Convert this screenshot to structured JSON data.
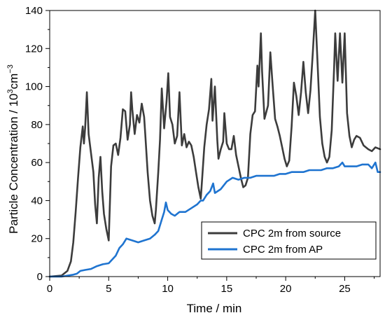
{
  "chart_data": {
    "type": "line",
    "title": "",
    "xlabel": "Time / min",
    "ylabel": "Particle Concentration / 10³cm⁻³",
    "ylabel_parts": {
      "base": "Particle Concentration / 10",
      "sup1": "3",
      "mid": "cm",
      "sup2": "−3"
    },
    "xlim": [
      0,
      28
    ],
    "ylim": [
      0,
      140
    ],
    "xticks": [
      0,
      5,
      10,
      15,
      20,
      25
    ],
    "yticks": [
      0,
      20,
      40,
      60,
      80,
      100,
      120,
      140
    ],
    "grid": false,
    "legend_position": "bottom-right",
    "series": [
      {
        "name": "CPC 2m from source",
        "color": "#3c3c3c",
        "points": [
          [
            0,
            0
          ],
          [
            1,
            0.5
          ],
          [
            1.5,
            3
          ],
          [
            1.8,
            8
          ],
          [
            2,
            18
          ],
          [
            2.2,
            34
          ],
          [
            2.4,
            52
          ],
          [
            2.6,
            68
          ],
          [
            2.8,
            79
          ],
          [
            2.9,
            70
          ],
          [
            3.0,
            78
          ],
          [
            3.15,
            97
          ],
          [
            3.3,
            75
          ],
          [
            3.5,
            65
          ],
          [
            3.7,
            55
          ],
          [
            3.85,
            38
          ],
          [
            4.0,
            28
          ],
          [
            4.15,
            52
          ],
          [
            4.3,
            63
          ],
          [
            4.45,
            45
          ],
          [
            4.6,
            33
          ],
          [
            4.8,
            25
          ],
          [
            5.0,
            19
          ],
          [
            5.2,
            58
          ],
          [
            5.4,
            69
          ],
          [
            5.6,
            70
          ],
          [
            5.8,
            64
          ],
          [
            6.0,
            73
          ],
          [
            6.2,
            88
          ],
          [
            6.4,
            87
          ],
          [
            6.6,
            72
          ],
          [
            6.8,
            80
          ],
          [
            6.9,
            97
          ],
          [
            7.0,
            88
          ],
          [
            7.2,
            75
          ],
          [
            7.4,
            85
          ],
          [
            7.6,
            81
          ],
          [
            7.8,
            91
          ],
          [
            8.0,
            84
          ],
          [
            8.1,
            75
          ],
          [
            8.3,
            55
          ],
          [
            8.5,
            40
          ],
          [
            8.7,
            32
          ],
          [
            8.9,
            28
          ],
          [
            9.0,
            35
          ],
          [
            9.2,
            55
          ],
          [
            9.35,
            72
          ],
          [
            9.5,
            99
          ],
          [
            9.7,
            78
          ],
          [
            9.9,
            92
          ],
          [
            10.05,
            107
          ],
          [
            10.2,
            84
          ],
          [
            10.4,
            80
          ],
          [
            10.6,
            70
          ],
          [
            10.8,
            74
          ],
          [
            11.0,
            97
          ],
          [
            11.2,
            69
          ],
          [
            11.4,
            75
          ],
          [
            11.6,
            68
          ],
          [
            11.8,
            71
          ],
          [
            12.0,
            69
          ],
          [
            12.2,
            63
          ],
          [
            12.4,
            55
          ],
          [
            12.6,
            47
          ],
          [
            12.8,
            41
          ],
          [
            12.9,
            50
          ],
          [
            13.1,
            68
          ],
          [
            13.3,
            80
          ],
          [
            13.5,
            88
          ],
          [
            13.7,
            104
          ],
          [
            13.8,
            82
          ],
          [
            14.0,
            100
          ],
          [
            14.2,
            72
          ],
          [
            14.3,
            62
          ],
          [
            14.5,
            67
          ],
          [
            14.7,
            71
          ],
          [
            14.8,
            86
          ],
          [
            15.0,
            70
          ],
          [
            15.2,
            67
          ],
          [
            15.4,
            67
          ],
          [
            15.6,
            74
          ],
          [
            15.8,
            64
          ],
          [
            16.0,
            58
          ],
          [
            16.2,
            52
          ],
          [
            16.4,
            47
          ],
          [
            16.6,
            48
          ],
          [
            16.8,
            52
          ],
          [
            17.0,
            75
          ],
          [
            17.2,
            85
          ],
          [
            17.4,
            87
          ],
          [
            17.6,
            111
          ],
          [
            17.7,
            100
          ],
          [
            17.9,
            128
          ],
          [
            18.0,
            108
          ],
          [
            18.2,
            83
          ],
          [
            18.5,
            90
          ],
          [
            18.7,
            118
          ],
          [
            18.9,
            100
          ],
          [
            19.1,
            83
          ],
          [
            19.3,
            79
          ],
          [
            19.5,
            74
          ],
          [
            19.7,
            68
          ],
          [
            19.9,
            62
          ],
          [
            20.1,
            58
          ],
          [
            20.3,
            61
          ],
          [
            20.5,
            79
          ],
          [
            20.7,
            102
          ],
          [
            20.9,
            95
          ],
          [
            21.1,
            85
          ],
          [
            21.3,
            97
          ],
          [
            21.5,
            113
          ],
          [
            21.7,
            97
          ],
          [
            21.9,
            86
          ],
          [
            22.1,
            98
          ],
          [
            22.3,
            118
          ],
          [
            22.5,
            140
          ],
          [
            22.7,
            112
          ],
          [
            22.9,
            84
          ],
          [
            23.1,
            70
          ],
          [
            23.3,
            63
          ],
          [
            23.5,
            60
          ],
          [
            23.7,
            63
          ],
          [
            23.9,
            77
          ],
          [
            24.1,
            110
          ],
          [
            24.2,
            128
          ],
          [
            24.4,
            103
          ],
          [
            24.6,
            128
          ],
          [
            24.8,
            102
          ],
          [
            25.0,
            128
          ],
          [
            25.2,
            86
          ],
          [
            25.4,
            74
          ],
          [
            25.6,
            68
          ],
          [
            25.8,
            72
          ],
          [
            26.0,
            74
          ],
          [
            26.3,
            73
          ],
          [
            26.6,
            69
          ],
          [
            27.0,
            67
          ],
          [
            27.3,
            66
          ],
          [
            27.6,
            68
          ],
          [
            28.0,
            67
          ]
        ]
      },
      {
        "name": "CPC 2m from AP",
        "color": "#1f74d0",
        "points": [
          [
            0,
            0
          ],
          [
            1,
            0
          ],
          [
            1.5,
            0.5
          ],
          [
            2,
            1
          ],
          [
            2.3,
            1.5
          ],
          [
            2.6,
            3
          ],
          [
            3.0,
            3.5
          ],
          [
            3.5,
            4
          ],
          [
            4.0,
            5.5
          ],
          [
            4.5,
            6.5
          ],
          [
            5.0,
            7
          ],
          [
            5.3,
            9
          ],
          [
            5.6,
            11
          ],
          [
            5.9,
            15
          ],
          [
            6.2,
            17
          ],
          [
            6.5,
            20
          ],
          [
            7.0,
            19
          ],
          [
            7.5,
            18
          ],
          [
            8.0,
            19
          ],
          [
            8.5,
            20
          ],
          [
            8.9,
            22
          ],
          [
            9.2,
            24
          ],
          [
            9.5,
            30
          ],
          [
            9.7,
            34
          ],
          [
            9.85,
            39
          ],
          [
            10.0,
            35
          ],
          [
            10.3,
            33
          ],
          [
            10.6,
            32
          ],
          [
            11.0,
            34
          ],
          [
            11.5,
            34
          ],
          [
            12.0,
            36
          ],
          [
            12.5,
            38
          ],
          [
            12.8,
            40
          ],
          [
            13.0,
            40
          ],
          [
            13.3,
            43
          ],
          [
            13.6,
            45
          ],
          [
            13.85,
            49
          ],
          [
            14.0,
            44
          ],
          [
            14.5,
            46
          ],
          [
            15.0,
            50
          ],
          [
            15.5,
            52
          ],
          [
            16.0,
            51
          ],
          [
            16.5,
            52
          ],
          [
            17.0,
            52
          ],
          [
            17.5,
            53
          ],
          [
            18.0,
            53
          ],
          [
            18.5,
            53
          ],
          [
            19.0,
            53
          ],
          [
            19.5,
            54
          ],
          [
            20.0,
            54
          ],
          [
            20.5,
            55
          ],
          [
            21.0,
            55
          ],
          [
            21.5,
            55
          ],
          [
            22.0,
            56
          ],
          [
            22.5,
            56
          ],
          [
            23.0,
            56
          ],
          [
            23.5,
            57
          ],
          [
            24.0,
            57
          ],
          [
            24.5,
            58
          ],
          [
            24.8,
            60
          ],
          [
            25.0,
            58
          ],
          [
            25.5,
            58
          ],
          [
            26.0,
            58
          ],
          [
            26.5,
            59
          ],
          [
            27.0,
            59
          ],
          [
            27.3,
            57
          ],
          [
            27.6,
            60
          ],
          [
            27.8,
            55
          ],
          [
            28.0,
            55
          ]
        ]
      }
    ]
  }
}
